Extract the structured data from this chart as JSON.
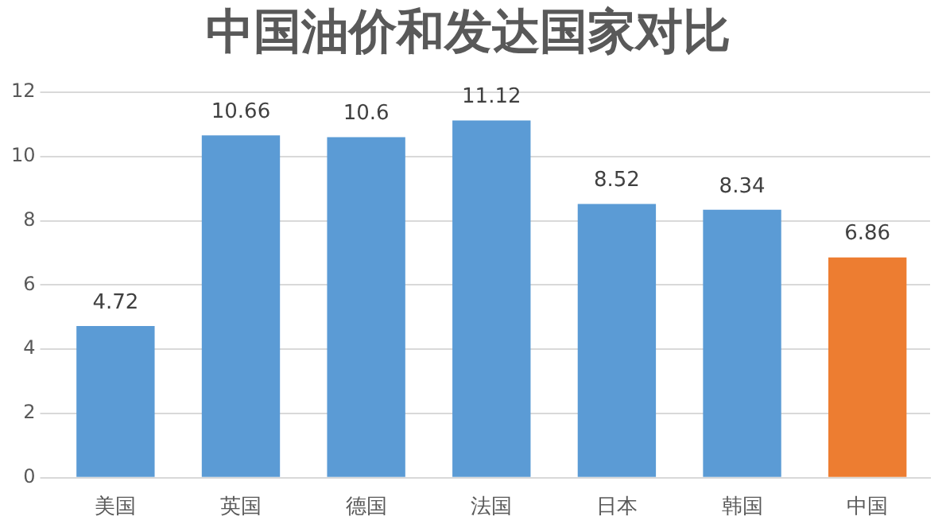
{
  "chart_data": {
    "type": "bar",
    "title": "中国油价和发达国家对比",
    "categories": [
      "美国",
      "英国",
      "德国",
      "法国",
      "日本",
      "韩国",
      "中国"
    ],
    "values": [
      4.72,
      10.66,
      10.6,
      11.12,
      8.52,
      8.34,
      6.86
    ],
    "colors": [
      "#5b9bd5",
      "#5b9bd5",
      "#5b9bd5",
      "#5b9bd5",
      "#5b9bd5",
      "#5b9bd5",
      "#ed7d31"
    ],
    "ylim": [
      0,
      12
    ],
    "yticks": [
      0,
      2,
      4,
      6,
      8,
      10,
      12
    ],
    "grid": "y",
    "data_labels": true
  }
}
